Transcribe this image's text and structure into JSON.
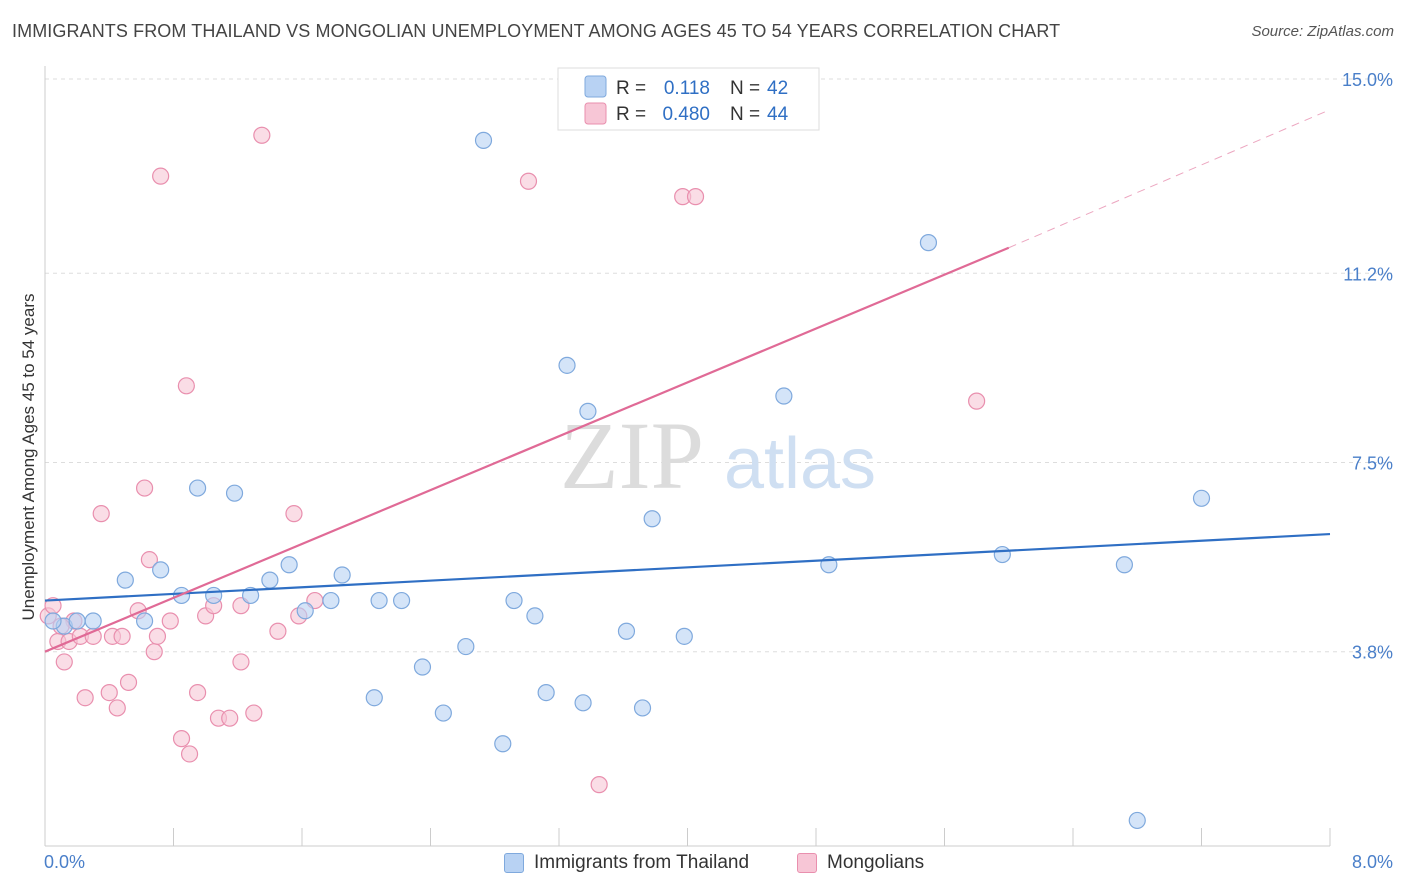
{
  "title": "IMMIGRANTS FROM THAILAND VS MONGOLIAN UNEMPLOYMENT AMONG AGES 45 TO 54 YEARS CORRELATION CHART",
  "source": "Source: ZipAtlas.com",
  "watermark": {
    "zip": "ZIP",
    "atlas": "atlas"
  },
  "colors": {
    "thailand_fill": "#b8d2f3",
    "thailand_stroke": "#7fa9dd",
    "thailand_line": "#2f6fc4",
    "mongolian_fill": "#f7c6d6",
    "mongolian_stroke": "#e98fae",
    "mongolian_line": "#e06a96",
    "tick_label": "#4a7fc9",
    "grid": "#dddddd"
  },
  "legend_top": {
    "rows": [
      {
        "r_label": "R = ",
        "r_value": "0.118",
        "n_label": "N = ",
        "n_value": "42"
      },
      {
        "r_label": "R = ",
        "r_value": "0.480",
        "n_label": "N = ",
        "n_value": "44"
      }
    ]
  },
  "legend_bottom": [
    {
      "label": "Immigrants from Thailand"
    },
    {
      "label": "Mongolians"
    }
  ],
  "chart_data": {
    "type": "scatter",
    "title": "IMMIGRANTS FROM THAILAND VS MONGOLIAN UNEMPLOYMENT AMONG AGES 45 TO 54 YEARS CORRELATION CHART",
    "xlabel": "",
    "ylabel": "Unemployment Among Ages 45 to 54 years",
    "xlim": [
      0,
      8.0
    ],
    "ylim": [
      0,
      15.0
    ],
    "x_tick_labels": [
      "0.0%",
      "8.0%"
    ],
    "y_ticks": [
      3.8,
      7.5,
      11.2,
      15.0
    ],
    "y_tick_labels": [
      "3.8%",
      "7.5%",
      "11.2%",
      "15.0%"
    ],
    "grid": true,
    "legend_position": "top-center",
    "series": [
      {
        "name": "Immigrants from Thailand",
        "r": 0.118,
        "n": 42,
        "trend": {
          "x": [
            0.0,
            8.0
          ],
          "y": [
            4.8,
            6.1
          ]
        },
        "points": [
          [
            0.12,
            4.3
          ],
          [
            0.2,
            4.4
          ],
          [
            0.3,
            4.4
          ],
          [
            0.5,
            5.2
          ],
          [
            0.62,
            4.4
          ],
          [
            0.72,
            5.4
          ],
          [
            0.85,
            4.9
          ],
          [
            0.95,
            7.0
          ],
          [
            1.05,
            4.9
          ],
          [
            1.18,
            6.9
          ],
          [
            1.28,
            4.9
          ],
          [
            1.4,
            5.2
          ],
          [
            1.52,
            5.5
          ],
          [
            1.62,
            4.6
          ],
          [
            1.78,
            4.8
          ],
          [
            1.85,
            5.3
          ],
          [
            2.05,
            2.9
          ],
          [
            2.08,
            4.8
          ],
          [
            2.22,
            4.8
          ],
          [
            2.35,
            3.5
          ],
          [
            2.48,
            2.6
          ],
          [
            2.62,
            3.9
          ],
          [
            2.73,
            13.8
          ],
          [
            2.85,
            2.0
          ],
          [
            2.92,
            4.8
          ],
          [
            3.05,
            4.5
          ],
          [
            3.12,
            3.0
          ],
          [
            3.25,
            9.4
          ],
          [
            3.35,
            2.8
          ],
          [
            3.38,
            8.5
          ],
          [
            3.62,
            4.2
          ],
          [
            3.72,
            2.7
          ],
          [
            3.78,
            6.4
          ],
          [
            3.98,
            4.1
          ],
          [
            4.6,
            8.8
          ],
          [
            4.88,
            5.5
          ],
          [
            5.5,
            11.8
          ],
          [
            5.96,
            5.7
          ],
          [
            6.72,
            5.5
          ],
          [
            6.8,
            0.5
          ],
          [
            7.2,
            6.8
          ],
          [
            0.05,
            4.4
          ]
        ]
      },
      {
        "name": "Mongolians",
        "r": 0.48,
        "n": 44,
        "trend": {
          "x": [
            0.0,
            6.0
          ],
          "y": [
            3.8,
            11.7
          ]
        },
        "trend_dashed": {
          "x": [
            6.0,
            8.0
          ],
          "y": [
            11.7,
            14.4
          ]
        },
        "points": [
          [
            0.02,
            4.5
          ],
          [
            0.05,
            4.7
          ],
          [
            0.08,
            4.0
          ],
          [
            0.12,
            3.6
          ],
          [
            0.15,
            4.0
          ],
          [
            0.18,
            4.4
          ],
          [
            0.22,
            4.1
          ],
          [
            0.25,
            2.9
          ],
          [
            0.3,
            4.1
          ],
          [
            0.35,
            6.5
          ],
          [
            0.4,
            3.0
          ],
          [
            0.42,
            4.1
          ],
          [
            0.45,
            2.7
          ],
          [
            0.48,
            4.1
          ],
          [
            0.52,
            3.2
          ],
          [
            0.58,
            4.6
          ],
          [
            0.62,
            7.0
          ],
          [
            0.65,
            5.6
          ],
          [
            0.68,
            3.8
          ],
          [
            0.7,
            4.1
          ],
          [
            0.72,
            13.1
          ],
          [
            0.78,
            4.4
          ],
          [
            0.85,
            2.1
          ],
          [
            0.88,
            9.0
          ],
          [
            0.9,
            1.8
          ],
          [
            0.95,
            3.0
          ],
          [
            1.0,
            4.5
          ],
          [
            1.05,
            4.7
          ],
          [
            1.08,
            2.5
          ],
          [
            1.15,
            2.5
          ],
          [
            1.22,
            3.6
          ],
          [
            1.22,
            4.7
          ],
          [
            1.3,
            2.6
          ],
          [
            1.35,
            13.9
          ],
          [
            1.45,
            4.2
          ],
          [
            1.55,
            6.5
          ],
          [
            1.58,
            4.5
          ],
          [
            1.68,
            4.8
          ],
          [
            3.01,
            13.0
          ],
          [
            3.45,
            1.2
          ],
          [
            3.97,
            12.7
          ],
          [
            4.05,
            12.7
          ],
          [
            5.8,
            8.7
          ],
          [
            0.1,
            4.3
          ]
        ]
      }
    ]
  }
}
